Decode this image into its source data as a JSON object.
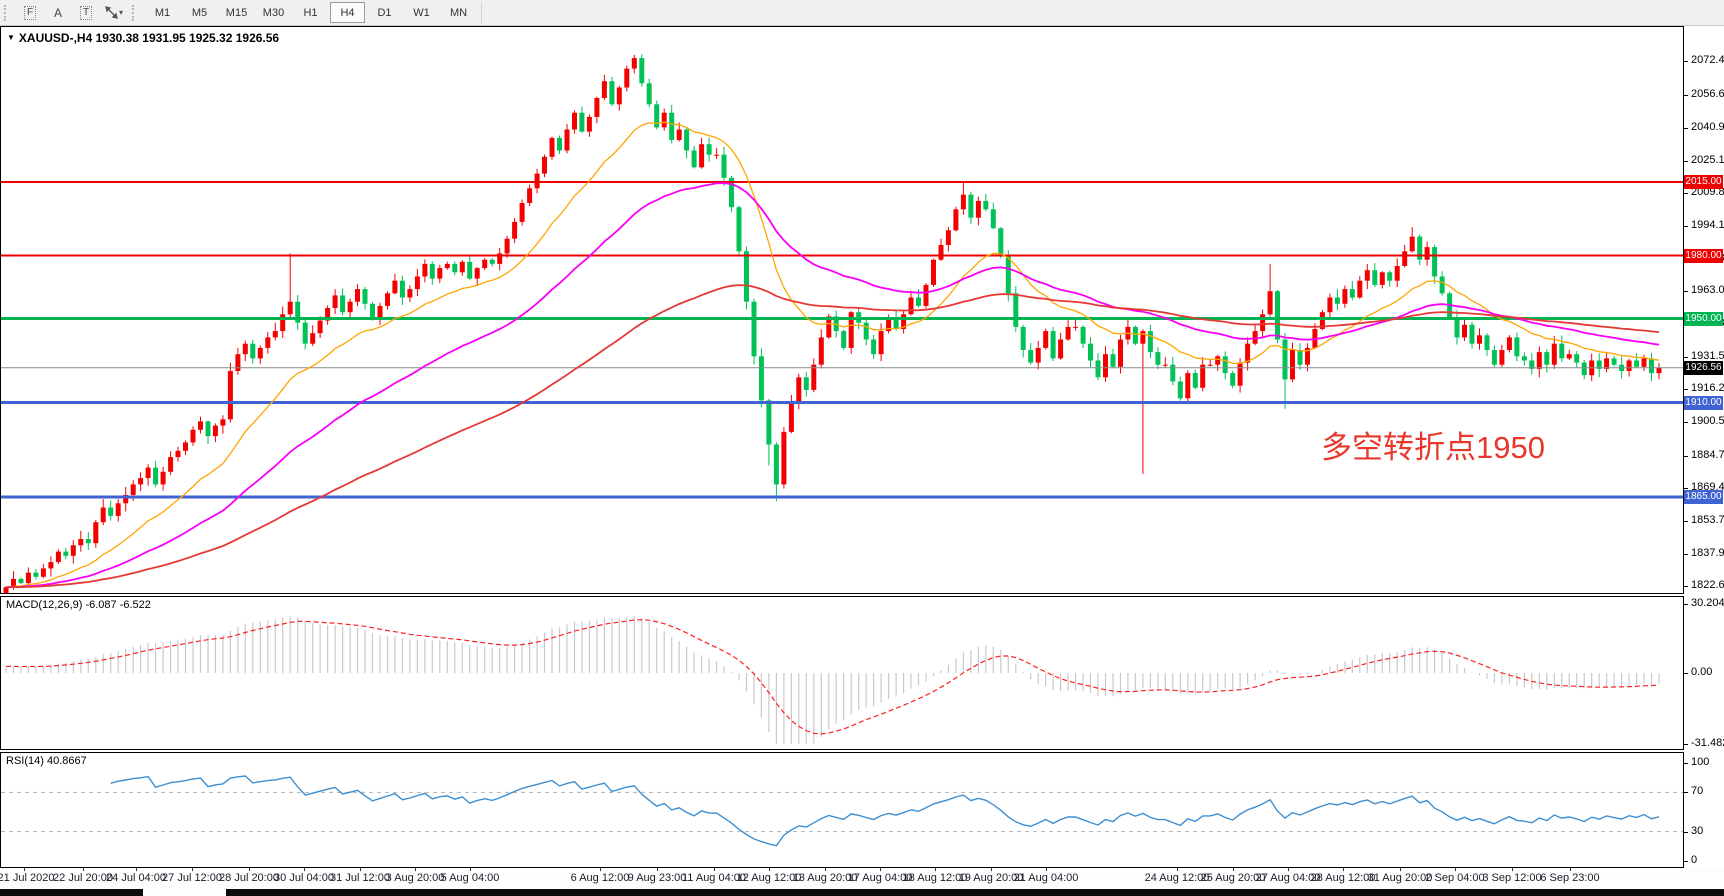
{
  "toolbar": {
    "icons": [
      {
        "name": "frame-f-icon",
        "glyph": "F"
      },
      {
        "name": "label-a-icon",
        "glyph": "A"
      },
      {
        "name": "text-box-t-icon",
        "glyph": "T"
      },
      {
        "name": "cursor-arrows-icon",
        "glyph": "arrows"
      }
    ],
    "dropdown_caret": "▾",
    "timeframes": [
      "M1",
      "M5",
      "M15",
      "M30",
      "H1",
      "H4",
      "D1",
      "W1",
      "MN"
    ],
    "active_timeframe": "H4"
  },
  "chart_header": {
    "dropdown": "▼",
    "symbol_line": "XAUUSD-,H4  1930.38 1931.95 1925.32 1926.56"
  },
  "annotation": {
    "text": "多空转折点1950",
    "color": "#e8382b"
  },
  "price_axis": {
    "ticks": [
      2072.4,
      2056.65,
      2040.9,
      2025.15,
      2009.85,
      1994.1,
      1978.35,
      1963.05,
      1947.3,
      1931.55,
      1916.25,
      1900.5,
      1884.75,
      1869.45,
      1853.7,
      1837.95,
      1822.65
    ],
    "badges": [
      {
        "price": 2015.0,
        "label": "2015.00",
        "bg": "#ee0000"
      },
      {
        "price": 1980.0,
        "label": "1980.00",
        "bg": "#ee0000"
      },
      {
        "price": 1950.0,
        "label": "1950.00",
        "bg": "#00b454"
      },
      {
        "price": 1926.56,
        "label": "1926.56",
        "bg": "#000000"
      },
      {
        "price": 1910.0,
        "label": "1910.00",
        "bg": "#3f63d2"
      },
      {
        "price": 1865.0,
        "label": "1865.00",
        "bg": "#3f63d2"
      }
    ]
  },
  "hlines": [
    {
      "price": 2015.0,
      "color": "#f00000",
      "width": 2
    },
    {
      "price": 1980.0,
      "color": "#f00000",
      "width": 2
    },
    {
      "price": 1950.0,
      "color": "#00b454",
      "width": 3
    },
    {
      "price": 1910.0,
      "color": "#3f63d2",
      "width": 3
    },
    {
      "price": 1865.0,
      "color": "#3f63d2",
      "width": 3
    },
    {
      "price": 1926.56,
      "color": "#898989",
      "width": 1
    }
  ],
  "macd_panel": {
    "label": "MACD(12,26,9) -6.087 -6.522",
    "axis_ticks": [
      {
        "v": 30.204,
        "t": "30.204"
      },
      {
        "v": 0,
        "t": "0.00"
      },
      {
        "v": -31.482,
        "t": "-31.482"
      }
    ]
  },
  "rsi_panel": {
    "label": "RSI(14) 40.8667",
    "axis_ticks": [
      {
        "v": 100,
        "t": "100"
      },
      {
        "v": 70,
        "t": "70"
      },
      {
        "v": 30,
        "t": "30"
      },
      {
        "v": 0,
        "t": "0"
      }
    ],
    "levels": [
      70,
      30
    ]
  },
  "time_axis": {
    "labels": [
      "21 Jul 2020",
      "22 Jul 20:00",
      "24 Jul 04:00",
      "27 Jul 12:00",
      "28 Jul 20:00",
      "30 Jul 04:00",
      "31 Jul 12:00",
      "3 Aug 20:00",
      "5 Aug 04:00",
      "6 Aug 12:00",
      "9 Aug 23:00",
      "11 Aug 04:00",
      "12 Aug 12:00",
      "13 Aug 20:00",
      "17 Aug 04:00",
      "18 Aug 12:00",
      "19 Aug 20:00",
      "21 Aug 04:00",
      "24 Aug 12:00",
      "25 Aug 20:00",
      "27 Aug 04:00",
      "28 Aug 12:00",
      "31 Aug 20:00",
      "2 Sep 04:00",
      "3 Sep 12:00",
      "6 Sep 23:00"
    ],
    "centers": [
      24,
      83,
      136,
      192,
      249,
      304,
      360,
      415,
      470,
      600,
      657,
      714,
      769,
      825,
      880,
      935,
      991,
      1046,
      1177,
      1233,
      1288,
      1343,
      1400,
      1455,
      1512,
      1570
    ]
  },
  "chart_data": {
    "type": "candlestick",
    "symbol": "XAUUSD",
    "timeframe": "H4",
    "ohlc_header": {
      "open": 1930.38,
      "high": 1931.95,
      "low": 1925.32,
      "close": 1926.56
    },
    "current_price": 1926.56,
    "visible_price_range": [
      1819,
      2089
    ],
    "first_open": 1819,
    "closes": [
      1822,
      1826,
      1824,
      1829,
      1827,
      1831,
      1834,
      1839,
      1837,
      1842,
      1845,
      1843,
      1853,
      1860,
      1856,
      1862,
      1866,
      1871,
      1874,
      1879,
      1871,
      1877,
      1884,
      1887,
      1891,
      1897,
      1901,
      1894,
      1899,
      1902,
      1925,
      1933,
      1938,
      1931,
      1936,
      1941,
      1944,
      1952,
      1958,
      1948,
      1938,
      1943,
      1949,
      1955,
      1961,
      1953,
      1958,
      1964,
      1957,
      1950,
      1956,
      1962,
      1968,
      1960,
      1964,
      1970,
      1976,
      1969,
      1974,
      1976,
      1972,
      1977,
      1969,
      1974,
      1978,
      1976,
      1981,
      1988,
      1996,
      2005,
      2012,
      2019,
      2027,
      2036,
      2030,
      2040,
      2048,
      2039,
      2046,
      2055,
      2063,
      2052,
      2060,
      2069,
      2074,
      2062,
      2052,
      2041,
      2048,
      2035,
      2040,
      2030,
      2022,
      2033,
      2028,
      2028,
      2017,
      2003,
      1982,
      1958,
      1932,
      1911,
      1890,
      1871,
      1896,
      1910,
      1922,
      1916,
      1928,
      1941,
      1951,
      1944,
      1936,
      1953,
      1948,
      1940,
      1933,
      1944,
      1950,
      1945,
      1952,
      1960,
      1956,
      1966,
      1978,
      1985,
      1992,
      2002,
      2009,
      1998,
      2006,
      2002,
      1993,
      1980,
      1962,
      1946,
      1935,
      1929,
      1936,
      1944,
      1931,
      1940,
      1946,
      1946,
      1938,
      1930,
      1922,
      1933,
      1927,
      1940,
      1946,
      1938,
      1944,
      1934,
      1928,
      1928,
      1920,
      1912,
      1924,
      1917,
      1928,
      1928,
      1932,
      1924,
      1918,
      1929,
      1938,
      1944,
      1952,
      1963,
      1940,
      1921,
      1935,
      1928,
      1936,
      1945,
      1953,
      1960,
      1957,
      1964,
      1960,
      1968,
      1973,
      1966,
      1972,
      1968,
      1975,
      1982,
      1989,
      1978,
      1984,
      1970,
      1962,
      1950,
      1941,
      1947,
      1938,
      1942,
      1935,
      1928,
      1935,
      1941,
      1932,
      1930,
      1926,
      1934,
      1928,
      1938,
      1931,
      1933,
      1929,
      1923,
      1930,
      1926,
      1931,
      1928,
      1925,
      1930,
      1927,
      1931,
      1924,
      1926.56
    ],
    "wick_overrides": {
      "38": [
        1981,
        null
      ],
      "84": [
        2075.5,
        null
      ],
      "102": [
        null,
        1880
      ],
      "103": [
        null,
        1863
      ],
      "128": [
        2015.3,
        null
      ],
      "152": [
        null,
        1876
      ],
      "169": [
        1976,
        null
      ],
      "171": [
        null,
        1907
      ],
      "188": [
        1993.5,
        null
      ]
    },
    "horizontal_levels": [
      2015,
      1980,
      1950,
      1910,
      1865
    ],
    "ma_lines": [
      {
        "name": "fast-ma",
        "color": "#ffa500",
        "alpha": 0.11,
        "width": 1.3
      },
      {
        "name": "mid-ma",
        "color": "#f800f8",
        "alpha": 0.045,
        "width": 1.8
      },
      {
        "name": "slow-ma",
        "color": "#e53935",
        "alpha": 0.02,
        "width": 1.8
      }
    ],
    "macd": {
      "fast": 12,
      "slow": 26,
      "signal": 9,
      "last": -6.087,
      "last_signal": -6.522,
      "axis_range": [
        -31.482,
        30.204
      ]
    },
    "rsi": {
      "period": 14,
      "last": 40.8667,
      "axis_range": [
        0,
        100
      ],
      "levels": [
        30,
        70
      ]
    }
  },
  "colors": {
    "bull": "#f40000",
    "bear": "#00c257",
    "macd_hist": "#c9c9c9",
    "macd_signal": "#ff2020",
    "rsi_line": "#3d8fd1",
    "level_dash": "#b0b0b0",
    "axis_text": "#000000",
    "toolbar_bg": "#f0f0f0"
  }
}
